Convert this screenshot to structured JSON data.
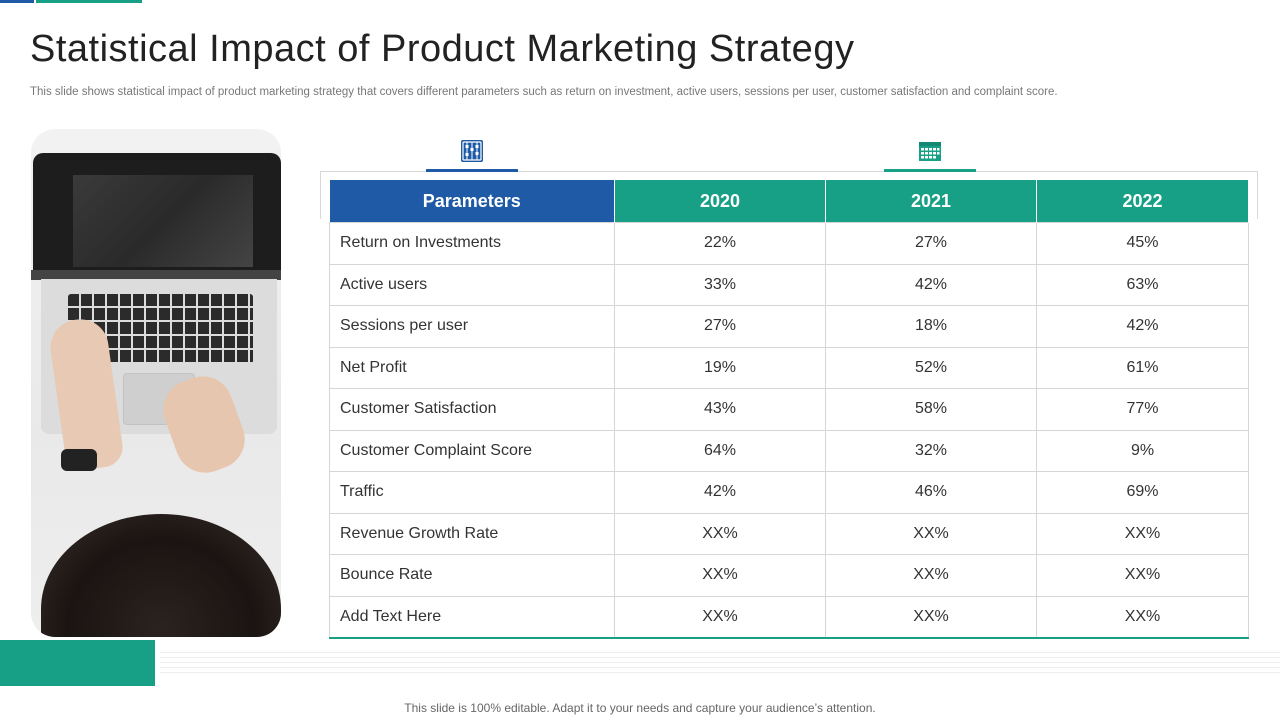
{
  "slide": {
    "title": "Statistical Impact of Product Marketing Strategy",
    "subtitle": "This slide shows statistical impact of product marketing strategy that covers different parameters such as return on investment, active users, sessions per user, customer satisfaction and complaint score.",
    "footer_note": "This slide is 100% editable. Adapt it to your needs and capture your audience’s attention."
  },
  "colors": {
    "blue": "#1f5aa6",
    "green": "#17a086"
  },
  "icons": {
    "left_tab": "abacus-icon",
    "right_tab": "calendar-icon"
  },
  "table": {
    "headers": [
      "Parameters",
      "2020",
      "2021",
      "2022"
    ],
    "rows": [
      {
        "label": "Return  on Investments",
        "values": [
          "22%",
          "27%",
          "45%"
        ]
      },
      {
        "label": "Active users",
        "values": [
          "33%",
          "42%",
          "63%"
        ]
      },
      {
        "label": "Sessions per user",
        "values": [
          "27%",
          "18%",
          "42%"
        ]
      },
      {
        "label": "Net Profit",
        "values": [
          "19%",
          "52%",
          "61%"
        ]
      },
      {
        "label": "Customer Satisfaction",
        "values": [
          "43%",
          "58%",
          "77%"
        ]
      },
      {
        "label": "Customer Complaint Score",
        "values": [
          "64%",
          "32%",
          "9%"
        ]
      },
      {
        "label": "Traffic",
        "values": [
          "42%",
          "46%",
          "69%"
        ]
      },
      {
        "label": "Revenue  Growth  Rate",
        "values": [
          "XX%",
          "XX%",
          "XX%"
        ]
      },
      {
        "label": "Bounce Rate",
        "values": [
          "XX%",
          "XX%",
          "XX%"
        ]
      },
      {
        "label": "Add Text Here",
        "values": [
          "XX%",
          "XX%",
          "XX%"
        ]
      }
    ]
  }
}
